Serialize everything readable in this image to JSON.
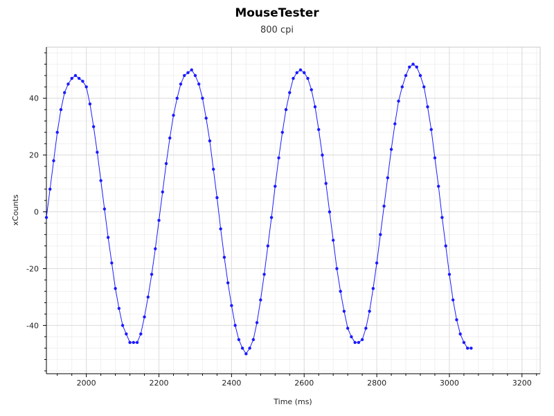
{
  "chart_data": {
    "type": "scatter",
    "title": "MouseTester",
    "subtitle": "800 cpi",
    "xlabel": "Time (ms)",
    "ylabel": "xCounts",
    "xlim": [
      1890,
      3250
    ],
    "ylim": [
      -57,
      58
    ],
    "x_ticks": [
      2000,
      2200,
      2400,
      2600,
      2800,
      3000,
      3200
    ],
    "y_ticks": [
      -40,
      -20,
      0,
      20,
      40
    ],
    "grid": true,
    "legend": "none",
    "series_color": "#1a1aff",
    "series": [
      {
        "points": [
          [
            1890,
            -2
          ],
          [
            1900,
            8
          ],
          [
            1910,
            18
          ],
          [
            1920,
            28
          ],
          [
            1930,
            36
          ],
          [
            1940,
            42
          ],
          [
            1950,
            45
          ],
          [
            1960,
            47
          ],
          [
            1970,
            48
          ],
          [
            1980,
            47
          ],
          [
            1990,
            46
          ],
          [
            2000,
            44
          ],
          [
            2010,
            38
          ],
          [
            2020,
            30
          ],
          [
            2030,
            21
          ],
          [
            2040,
            11
          ],
          [
            2050,
            1
          ],
          [
            2060,
            -9
          ],
          [
            2070,
            -18
          ],
          [
            2080,
            -27
          ],
          [
            2090,
            -34
          ],
          [
            2100,
            -40
          ],
          [
            2110,
            -43
          ],
          [
            2120,
            -46
          ],
          [
            2130,
            -46
          ],
          [
            2140,
            -46
          ],
          [
            2150,
            -43
          ],
          [
            2160,
            -37
          ],
          [
            2170,
            -30
          ],
          [
            2180,
            -22
          ],
          [
            2190,
            -13
          ],
          [
            2200,
            -3
          ],
          [
            2210,
            7
          ],
          [
            2220,
            17
          ],
          [
            2230,
            26
          ],
          [
            2240,
            34
          ],
          [
            2250,
            40
          ],
          [
            2260,
            45
          ],
          [
            2270,
            48
          ],
          [
            2280,
            49
          ],
          [
            2290,
            50
          ],
          [
            2300,
            48
          ],
          [
            2310,
            45
          ],
          [
            2320,
            40
          ],
          [
            2330,
            33
          ],
          [
            2340,
            25
          ],
          [
            2350,
            15
          ],
          [
            2360,
            5
          ],
          [
            2370,
            -6
          ],
          [
            2380,
            -16
          ],
          [
            2390,
            -25
          ],
          [
            2400,
            -33
          ],
          [
            2410,
            -40
          ],
          [
            2420,
            -45
          ],
          [
            2430,
            -48
          ],
          [
            2440,
            -50
          ],
          [
            2450,
            -48
          ],
          [
            2460,
            -45
          ],
          [
            2470,
            -39
          ],
          [
            2480,
            -31
          ],
          [
            2490,
            -22
          ],
          [
            2500,
            -12
          ],
          [
            2510,
            -2
          ],
          [
            2520,
            9
          ],
          [
            2530,
            19
          ],
          [
            2540,
            28
          ],
          [
            2550,
            36
          ],
          [
            2560,
            42
          ],
          [
            2570,
            47
          ],
          [
            2580,
            49
          ],
          [
            2590,
            50
          ],
          [
            2600,
            49
          ],
          [
            2610,
            47
          ],
          [
            2620,
            43
          ],
          [
            2630,
            37
          ],
          [
            2640,
            29
          ],
          [
            2650,
            20
          ],
          [
            2660,
            10
          ],
          [
            2670,
            0
          ],
          [
            2680,
            -10
          ],
          [
            2690,
            -20
          ],
          [
            2700,
            -28
          ],
          [
            2710,
            -35
          ],
          [
            2720,
            -41
          ],
          [
            2730,
            -44
          ],
          [
            2740,
            -46
          ],
          [
            2750,
            -46
          ],
          [
            2760,
            -45
          ],
          [
            2770,
            -41
          ],
          [
            2780,
            -35
          ],
          [
            2790,
            -27
          ],
          [
            2800,
            -18
          ],
          [
            2810,
            -8
          ],
          [
            2820,
            2
          ],
          [
            2830,
            12
          ],
          [
            2840,
            22
          ],
          [
            2850,
            31
          ],
          [
            2860,
            39
          ],
          [
            2870,
            44
          ],
          [
            2880,
            48
          ],
          [
            2890,
            51
          ],
          [
            2900,
            52
          ],
          [
            2910,
            51
          ],
          [
            2920,
            48
          ],
          [
            2930,
            44
          ],
          [
            2940,
            37
          ],
          [
            2950,
            29
          ],
          [
            2960,
            19
          ],
          [
            2970,
            9
          ],
          [
            2980,
            -2
          ],
          [
            2990,
            -12
          ],
          [
            3000,
            -22
          ],
          [
            3010,
            -31
          ],
          [
            3020,
            -38
          ],
          [
            3030,
            -43
          ],
          [
            3040,
            -46
          ],
          [
            3050,
            -48
          ],
          [
            3060,
            -48
          ]
        ]
      }
    ]
  }
}
